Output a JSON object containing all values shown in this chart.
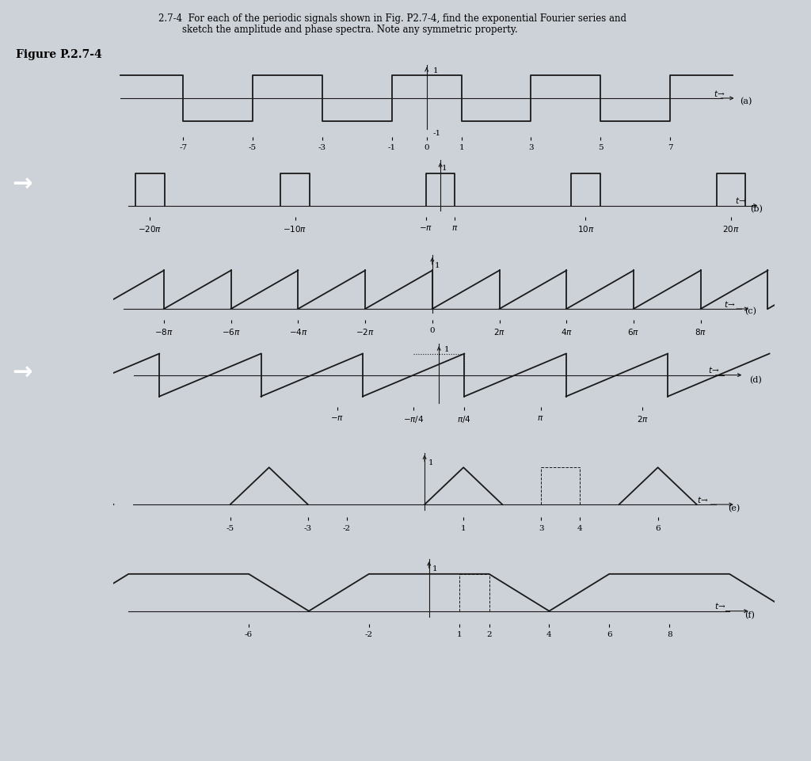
{
  "title_line1": "2.7-4  For each of the periodic signals shown in Fig. P2.7-4, find the exponential Fourier series and",
  "title_line2": "        sketch the amplitude and phase spectra. Note any symmetric property.",
  "figure_label": "Figure P.2.7-4",
  "bg_color": "#cdd1d8",
  "signal_color": "#1a1a1a",
  "subplot_labels": [
    "(a)",
    "(b)",
    "(c)",
    "(d)",
    "(e)",
    "(f)"
  ],
  "white_arrow_rows": [
    1,
    3
  ]
}
